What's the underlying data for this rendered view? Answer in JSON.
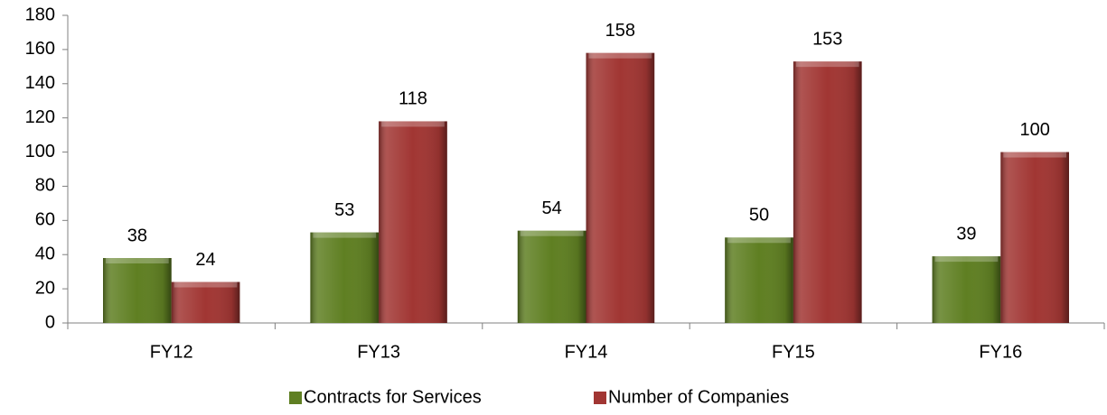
{
  "chart_data": {
    "type": "bar",
    "categories": [
      "FY12",
      "FY13",
      "FY14",
      "FY15",
      "FY16"
    ],
    "series": [
      {
        "name": "Contracts for Services",
        "color": "#5f7f22",
        "values": [
          38,
          53,
          54,
          50,
          39
        ]
      },
      {
        "name": "Number of Companies",
        "color": "#a13633",
        "values": [
          24,
          118,
          158,
          153,
          100
        ]
      }
    ],
    "ylim": [
      0,
      180
    ],
    "yticks": [
      0,
      20,
      40,
      60,
      80,
      100,
      120,
      140,
      160,
      180
    ],
    "legend": "bottom"
  }
}
